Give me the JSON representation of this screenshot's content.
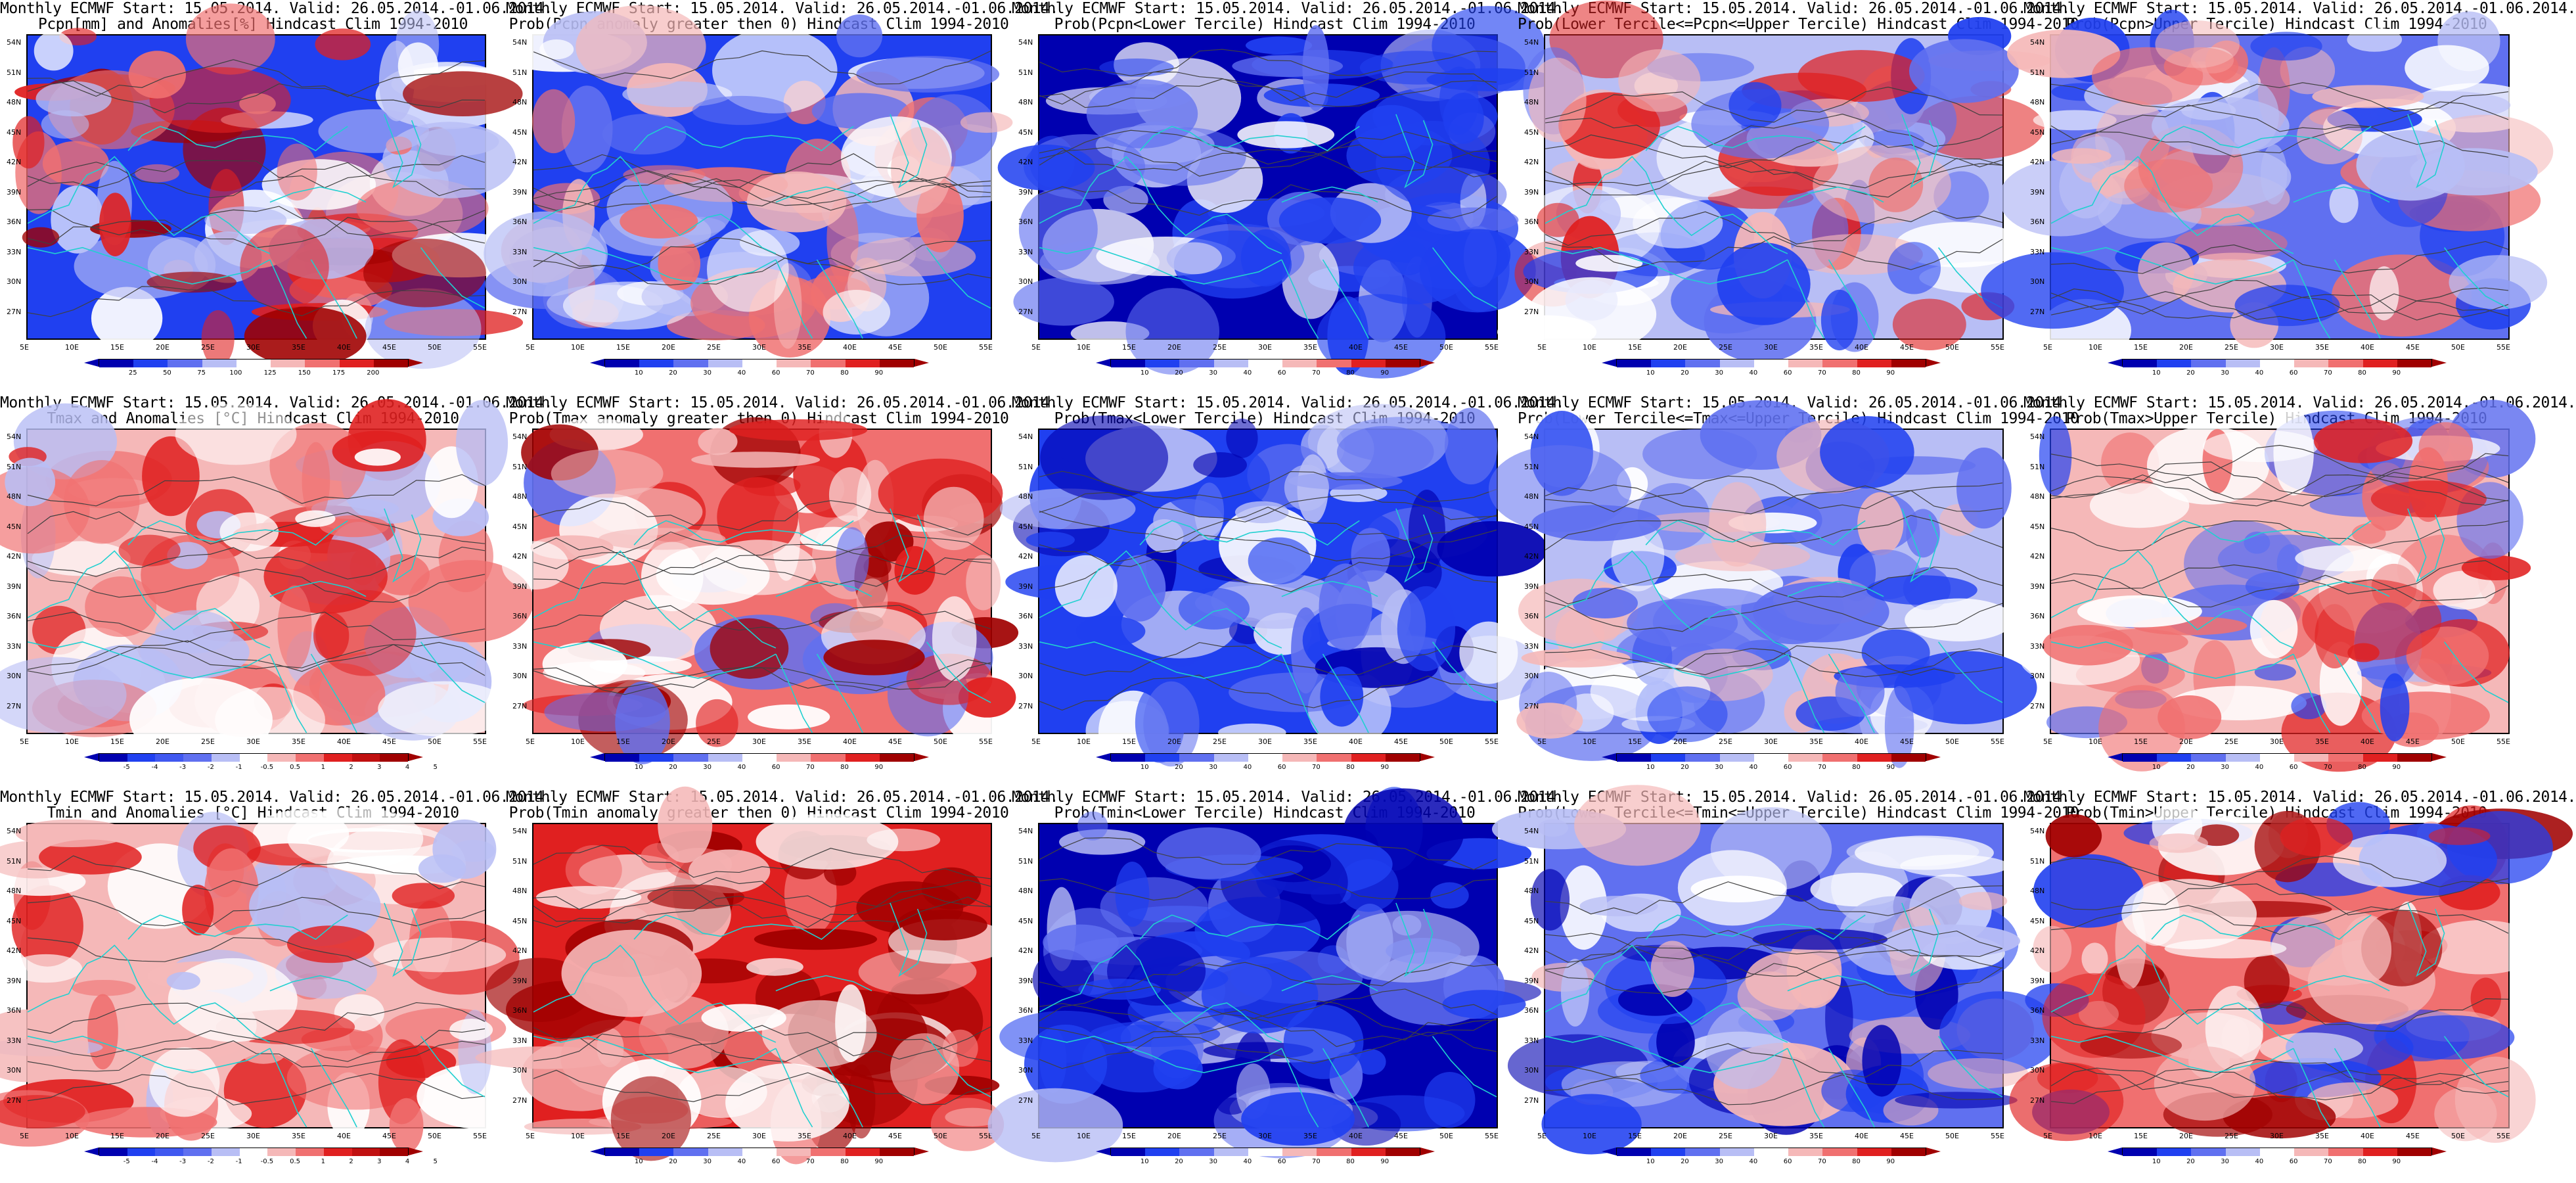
{
  "colors": {
    "deep_blue": "#0000b0",
    "blue": "#2040f0",
    "mid_blue": "#6070f0",
    "light_blue": "#b8bef5",
    "white": "#ffffff",
    "light_red": "#f5b8b8",
    "mid_red": "#f07070",
    "red": "#e02020",
    "deep_red": "#a00000",
    "coast": "#20d0d0",
    "contour": "#404040"
  },
  "lat_labels": [
    "54N",
    "51N",
    "48N",
    "45N",
    "42N",
    "39N",
    "36N",
    "33N",
    "30N",
    "27N"
  ],
  "lon_labels": [
    "5E",
    "10E",
    "15E",
    "20E",
    "25E",
    "30E",
    "35E",
    "40E",
    "45E",
    "50E",
    "55E"
  ],
  "scales": {
    "precip": [
      "25",
      "50",
      "75",
      "100",
      "125",
      "150",
      "175",
      "200"
    ],
    "prob": [
      "10",
      "20",
      "30",
      "40",
      "60",
      "70",
      "80",
      "90"
    ],
    "temp": [
      "-5",
      "-4",
      "-3",
      "-2",
      "-1",
      "-0.5",
      "0.5",
      "1",
      "2",
      "3",
      "4",
      "5"
    ]
  },
  "panels": [
    {
      "title1": "Monthly ECMWF Start: 15.05.2014. Valid: 26.05.2014.-01.06.2014.",
      "title2": "Pcpn[mm] and Anomalies[%] Hindcast Clim 1994-2010",
      "scale": "precip",
      "pattern": "precip_anom"
    },
    {
      "title1": "Monthly ECMWF Start: 15.05.2014. Valid: 26.05.2014.-01.06.2014.",
      "title2": "Prob(Pcpn anomaly greater then 0) Hindcast Clim 1994-2010",
      "scale": "prob",
      "pattern": "precip_pos"
    },
    {
      "title1": "Monthly ECMWF Start: 15.05.2014. Valid: 26.05.2014.-01.06.2014.",
      "title2": "Prob(Pcpn<Lower Tercile) Hindcast Clim 1994-2010",
      "scale": "prob",
      "pattern": "precip_lower"
    },
    {
      "title1": "Monthly ECMWF Start: 15.05.2014. Valid: 26.05.2014.-01.06.2014.",
      "title2": "Prob(Lower Tercile<=Pcpn<=Upper Tercile) Hindcast Clim 1994-2010",
      "scale": "prob",
      "pattern": "precip_mid"
    },
    {
      "title1": "Monthly ECMWF Start: 15.05.2014. Valid: 26.05.2014.-01.06.2014.",
      "title2": "Prob(Pcpn>Upper Tercile) Hindcast Clim 1994-2010",
      "scale": "prob",
      "pattern": "precip_upper"
    },
    {
      "title1": "Monthly ECMWF Start: 15.05.2014. Valid: 26.05.2014.-01.06.2014.",
      "title2": "Tmax and Anomalies [°C] Hindcast Clim 1994-2010",
      "scale": "temp",
      "pattern": "tmax_anom"
    },
    {
      "title1": "Monthly ECMWF Start: 15.05.2014. Valid: 26.05.2014.-01.06.2014.",
      "title2": "Prob(Tmax anomaly greater then 0) Hindcast Clim 1994-2010",
      "scale": "prob",
      "pattern": "tmax_pos"
    },
    {
      "title1": "Monthly ECMWF Start: 15.05.2014. Valid: 26.05.2014.-01.06.2014.",
      "title2": "Prob(Tmax<Lower Tercile) Hindcast Clim 1994-2010",
      "scale": "prob",
      "pattern": "tmax_lower"
    },
    {
      "title1": "Monthly ECMWF Start: 15.05.2014. Valid: 26.05.2014.-01.06.2014.",
      "title2": "Prob(Lower Tercile<=Tmax<=Upper Tercile) Hindcast Clim 1994-2010",
      "scale": "prob",
      "pattern": "tmax_mid"
    },
    {
      "title1": "Monthly ECMWF Start: 15.05.2014. Valid: 26.05.2014.-01.06.2014.",
      "title2": "Prob(Tmax>Upper Tercile) Hindcast Clim 1994-2010",
      "scale": "prob",
      "pattern": "tmax_upper"
    },
    {
      "title1": "Monthly ECMWF Start: 15.05.2014. Valid: 26.05.2014.-01.06.2014.",
      "title2": "Tmin and Anomalies [°C] Hindcast Clim 1994-2010",
      "scale": "temp",
      "pattern": "tmin_anom"
    },
    {
      "title1": "Monthly ECMWF Start: 15.05.2014. Valid: 26.05.2014.-01.06.2014.",
      "title2": "Prob(Tmin anomaly greater then 0) Hindcast Clim 1994-2010",
      "scale": "prob",
      "pattern": "tmin_pos"
    },
    {
      "title1": "Monthly ECMWF Start: 15.05.2014. Valid: 26.05.2014.-01.06.2014.",
      "title2": "Prob(Tmin<Lower Tercile) Hindcast Clim 1994-2010",
      "scale": "prob",
      "pattern": "tmin_lower"
    },
    {
      "title1": "Monthly ECMWF Start: 15.05.2014. Valid: 26.05.2014.-01.06.2014.",
      "title2": "Prob(Lower Tercile<=Tmin<=Upper Tercile) Hindcast Clim 1994-2010",
      "scale": "prob",
      "pattern": "tmin_mid"
    },
    {
      "title1": "Monthly ECMWF Start: 15.05.2014. Valid: 26.05.2014.-01.06.2014.",
      "title2": "Prob(Tmin>Upper Tercile) Hindcast Clim 1994-2010",
      "scale": "prob",
      "pattern": "tmin_upper"
    }
  ]
}
